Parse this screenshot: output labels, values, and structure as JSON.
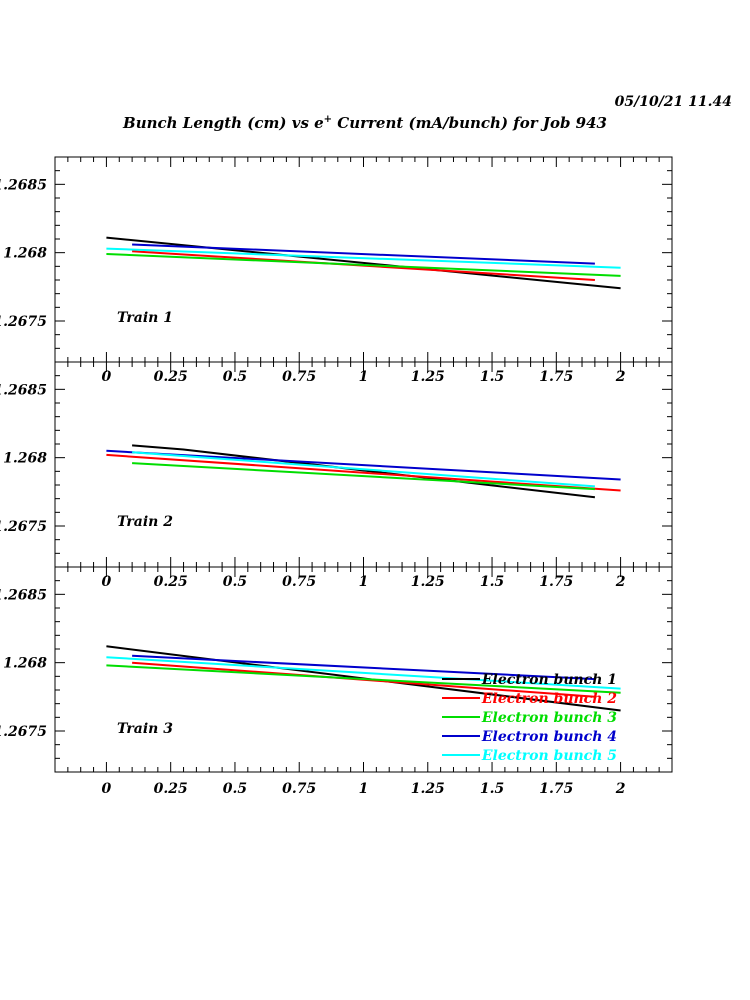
{
  "header": {
    "timestamp": "05/10/21   11.44",
    "title_pre": "Bunch Length (cm) vs e",
    "title_sup": "+",
    "title_post": " Current (mA/bunch) for Job 943"
  },
  "chart_data": {
    "type": "line",
    "title": "Bunch Length (cm) vs e+ Current (mA/bunch) for Job 943",
    "xlim": [
      -0.2,
      2.2
    ],
    "ylim": [
      1.2672,
      1.2687
    ],
    "x_ticks": [
      "0",
      "0.25",
      "0.5",
      "0.75",
      "1",
      "1.25",
      "1.5",
      "1.75",
      "2"
    ],
    "y_ticks": [
      "1.2685",
      "1.268",
      "1.2675"
    ],
    "legend_position": "bottom-right of Train 3 panel",
    "series_styles": [
      {
        "name": "Electron bunch 1",
        "color": "#000000"
      },
      {
        "name": "Electron bunch 2",
        "color": "#ff0000"
      },
      {
        "name": "Electron bunch 3",
        "color": "#00dd00"
      },
      {
        "name": "Electron bunch 4",
        "color": "#0000cc"
      },
      {
        "name": "Electron bunch 5",
        "color": "#00ffff"
      }
    ],
    "panels": [
      {
        "label": "Train 1",
        "series": [
          {
            "name": "Electron bunch 1",
            "points": [
              [
                0,
                1.26811
              ],
              [
                2,
                1.26774
              ]
            ]
          },
          {
            "name": "Electron bunch 2",
            "points": [
              [
                0.1,
                1.26801
              ],
              [
                1.9,
                1.2678
              ]
            ]
          },
          {
            "name": "Electron bunch 3",
            "points": [
              [
                0,
                1.26799
              ],
              [
                2,
                1.26783
              ]
            ]
          },
          {
            "name": "Electron bunch 4",
            "points": [
              [
                0.1,
                1.26806
              ],
              [
                1.9,
                1.26792
              ]
            ]
          },
          {
            "name": "Electron bunch 5",
            "points": [
              [
                0,
                1.26803
              ],
              [
                2,
                1.26789
              ]
            ]
          }
        ]
      },
      {
        "label": "Train 2",
        "series": [
          {
            "name": "Electron bunch 1",
            "points": [
              [
                0.1,
                1.26809
              ],
              [
                0.3,
                1.26806
              ],
              [
                1.9,
                1.26771
              ]
            ]
          },
          {
            "name": "Electron bunch 2",
            "points": [
              [
                0,
                1.26802
              ],
              [
                2,
                1.26776
              ]
            ]
          },
          {
            "name": "Electron bunch 3",
            "points": [
              [
                0.1,
                1.26796
              ],
              [
                1.9,
                1.26777
              ]
            ]
          },
          {
            "name": "Electron bunch 4",
            "points": [
              [
                0,
                1.26805
              ],
              [
                2,
                1.26784
              ]
            ]
          },
          {
            "name": "Electron bunch 5",
            "points": [
              [
                0.1,
                1.26804
              ],
              [
                1.9,
                1.26779
              ]
            ]
          }
        ]
      },
      {
        "label": "Train 3",
        "series": [
          {
            "name": "Electron bunch 1",
            "points": [
              [
                0,
                1.26812
              ],
              [
                2,
                1.26765
              ]
            ]
          },
          {
            "name": "Electron bunch 2",
            "points": [
              [
                0.1,
                1.268
              ],
              [
                1.9,
                1.26775
              ]
            ]
          },
          {
            "name": "Electron bunch 3",
            "points": [
              [
                0,
                1.26798
              ],
              [
                2,
                1.26778
              ]
            ]
          },
          {
            "name": "Electron bunch 4",
            "points": [
              [
                0.1,
                1.26805
              ],
              [
                1.9,
                1.26788
              ]
            ]
          },
          {
            "name": "Electron bunch 5",
            "points": [
              [
                0,
                1.26804
              ],
              [
                2,
                1.26781
              ]
            ]
          }
        ]
      }
    ]
  }
}
